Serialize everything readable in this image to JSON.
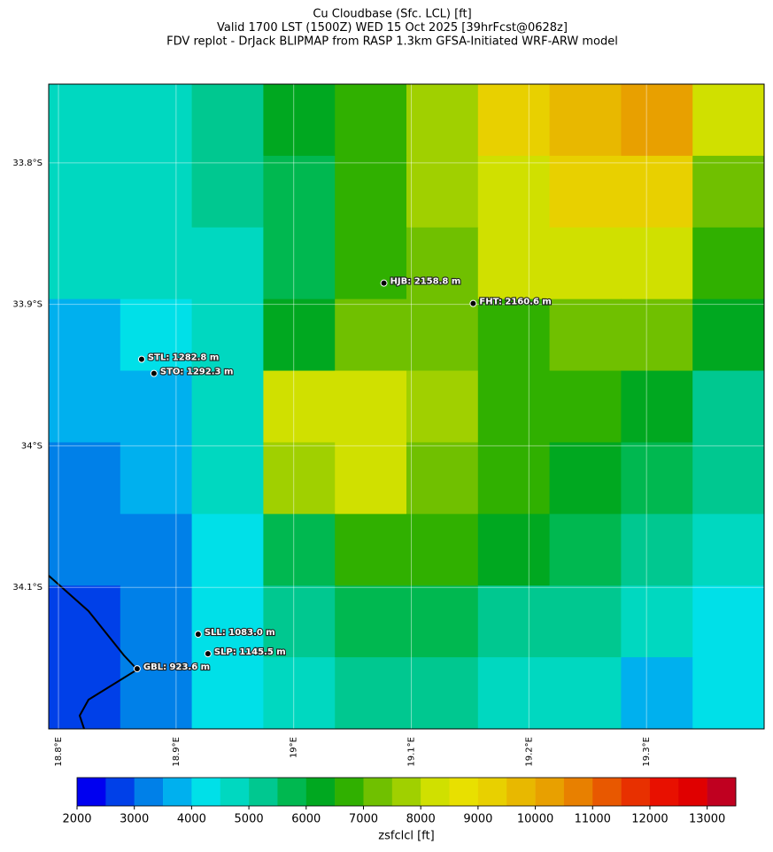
{
  "chart_data": {
    "type": "map",
    "title": [
      "Cu Cloudbase (Sfc. LCL) [ft]",
      "Valid 1700 LST (1500Z) WED 15 Oct 2025 [39hrFcst@0628z]",
      "FDV replot - DrJack BLIPMAP from RASP 1.3km GFSA-Initiated WRF-ARW model"
    ],
    "xlim": [
      18.7917,
      19.4
    ],
    "ylim": [
      -33.7444,
      -34.2
    ],
    "xticks": [
      {
        "value": 18.8,
        "label": "18.8°E"
      },
      {
        "value": 18.9,
        "label": "18.9°E"
      },
      {
        "value": 19.0,
        "label": "19°E"
      },
      {
        "value": 19.1,
        "label": "19.1°E"
      },
      {
        "value": 19.2,
        "label": "19.2°E"
      },
      {
        "value": 19.3,
        "label": "19.3°E"
      }
    ],
    "yticks": [
      {
        "value": -33.8,
        "label": "33.8°S"
      },
      {
        "value": -33.9,
        "label": "33.9°S"
      },
      {
        "value": -34.0,
        "label": "34°S"
      },
      {
        "value": -34.1,
        "label": "34.1°S"
      }
    ],
    "grid": true,
    "z": [
      [
        4500,
        4500,
        5000,
        6000,
        6500,
        7500,
        9000,
        9500,
        10000,
        8500
      ],
      [
        4500,
        4500,
        5000,
        5500,
        6500,
        7500,
        8500,
        9000,
        9000,
        7000
      ],
      [
        4500,
        4500,
        4500,
        5500,
        6500,
        7000,
        8000,
        8500,
        8000,
        6500
      ],
      [
        3500,
        4000,
        4500,
        6000,
        7000,
        7000,
        6500,
        7000,
        7000,
        6000
      ],
      [
        3500,
        3500,
        4500,
        8000,
        8500,
        7500,
        6500,
        6500,
        6000,
        5000
      ],
      [
        3000,
        3500,
        4500,
        7500,
        8000,
        7000,
        6500,
        6000,
        5500,
        5000
      ],
      [
        3000,
        3000,
        4000,
        5500,
        6500,
        6500,
        6000,
        5500,
        5000,
        4500
      ],
      [
        2500,
        3000,
        4000,
        5000,
        5500,
        5500,
        5000,
        5000,
        4500,
        4000
      ],
      [
        2500,
        3000,
        4000,
        4500,
        5000,
        5000,
        4500,
        4500,
        3500,
        4000
      ]
    ],
    "stations": [
      {
        "label": "HJB: 2158.8 m",
        "lon": 19.0767,
        "lat": -33.885
      },
      {
        "label": "FHT: 2160.6 m",
        "lon": 19.1526,
        "lat": -33.8994
      },
      {
        "label": "STL: 1282.8 m",
        "lon": 18.8707,
        "lat": -33.9388
      },
      {
        "label": "STO: 1292.3 m",
        "lon": 18.8812,
        "lat": -33.9488
      },
      {
        "label": "SLL: 1083.0 m",
        "lon": 18.9188,
        "lat": -34.1331
      },
      {
        "label": "SLP: 1145.5 m",
        "lon": 18.9271,
        "lat": -34.1469
      },
      {
        "label": "GBL: 923.6 m",
        "lon": 18.8669,
        "lat": -34.1575
      }
    ],
    "colorbar": {
      "label": "zsfclcl [ft]",
      "lim": [
        2000,
        13500
      ],
      "ticks": [
        2000,
        3000,
        4000,
        5000,
        6000,
        7000,
        8000,
        9000,
        10000,
        11000,
        12000,
        13000
      ],
      "colors": [
        "#0000f0",
        "#0040e8",
        "#0080e8",
        "#00b0ee",
        "#00e0e8",
        "#00d8c0",
        "#00c890",
        "#00b850",
        "#00a820",
        "#30b000",
        "#70c000",
        "#a0d000",
        "#d0e000",
        "#e8e000",
        "#e8d000",
        "#e8b800",
        "#e8a000",
        "#e88000",
        "#e85800",
        "#e83000",
        "#e81000",
        "#e00000",
        "#c00020"
      ]
    }
  }
}
